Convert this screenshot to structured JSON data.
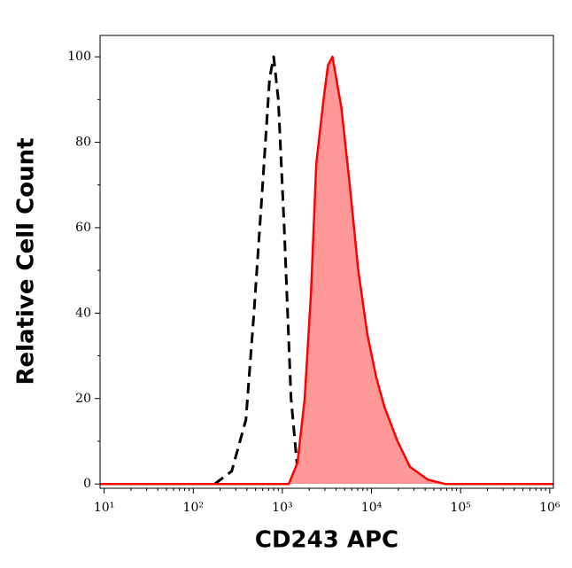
{
  "chart_data": {
    "type": "histogram-overlay",
    "x_label": "CD243 APC",
    "y_label": "Relative Cell Count",
    "xscale": "log",
    "xlim": [
      9,
      1100000
    ],
    "ylim": [
      -1,
      105
    ],
    "xticks": [
      {
        "value": 10,
        "label": "10¹"
      },
      {
        "value": 100,
        "label": "10²"
      },
      {
        "value": 1000,
        "label": "10³"
      },
      {
        "value": 10000,
        "label": "10⁴"
      },
      {
        "value": 100000,
        "label": "10⁵"
      },
      {
        "value": 1000000,
        "label": "10⁶"
      }
    ],
    "yticks": [
      0,
      20,
      40,
      60,
      80,
      100
    ],
    "series": [
      {
        "color": "#000000",
        "style": "dashed",
        "fill": false,
        "x": [
          174,
          270,
          390,
          480,
          600,
          720,
          800,
          900,
          1050,
          1250,
          1500,
          2100
        ],
        "values": [
          0,
          3,
          15,
          40,
          70,
          95,
          100,
          90,
          60,
          20,
          2,
          0
        ]
      },
      {
        "color": "#ff0000",
        "style": "solid",
        "fill": true,
        "fill_color": "#ff9999",
        "x": [
          9,
          1180,
          1480,
          1780,
          2100,
          2400,
          2900,
          3250,
          3650,
          4600,
          5700,
          7100,
          9000,
          11300,
          14000,
          19600,
          27000,
          43000,
          67000,
          1100000
        ],
        "values": [
          0,
          0,
          5,
          20,
          45,
          75,
          90,
          98,
          100,
          88,
          70,
          50,
          35,
          25,
          18,
          10,
          4,
          1,
          0,
          0
        ]
      }
    ]
  }
}
